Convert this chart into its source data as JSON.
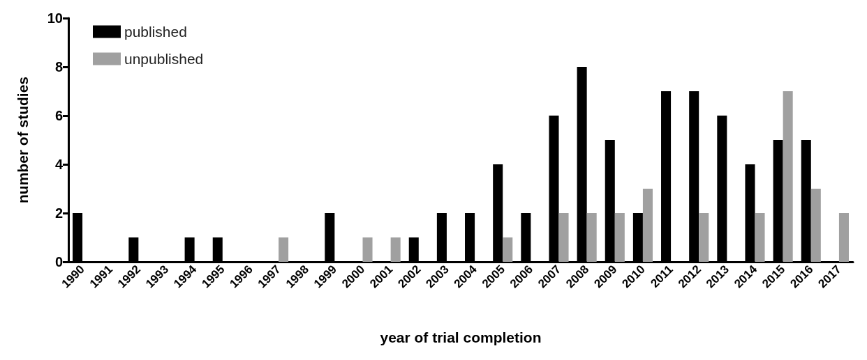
{
  "chart_data": {
    "type": "bar",
    "xlabel": "year of trial completion",
    "ylabel": "number of studies",
    "categories": [
      "1990",
      "1991",
      "1992",
      "1993",
      "1994",
      "1995",
      "1996",
      "1997",
      "1998",
      "1999",
      "2000",
      "2001",
      "2002",
      "2003",
      "2004",
      "2005",
      "2006",
      "2007",
      "2008",
      "2009",
      "2010",
      "2011",
      "2012",
      "2013",
      "2014",
      "2015",
      "2016",
      "2017"
    ],
    "series": [
      {
        "name": "published",
        "color": "#000000",
        "values": [
          2,
          0,
          1,
          0,
          1,
          1,
          0,
          0,
          0,
          2,
          0,
          0,
          1,
          2,
          2,
          4,
          2,
          6,
          8,
          5,
          2,
          7,
          7,
          6,
          4,
          5,
          5,
          0
        ]
      },
      {
        "name": "unpublished",
        "color": "#a0a0a0",
        "values": [
          0,
          0,
          0,
          0,
          0,
          0,
          0,
          1,
          0,
          0,
          1,
          1,
          0,
          0,
          0,
          1,
          0,
          2,
          2,
          2,
          3,
          0,
          2,
          0,
          2,
          7,
          3,
          2
        ]
      }
    ],
    "ylim": [
      0,
      10
    ],
    "yticks": [
      0,
      2,
      4,
      6,
      8,
      10
    ],
    "grid": false,
    "legend": "top left"
  }
}
